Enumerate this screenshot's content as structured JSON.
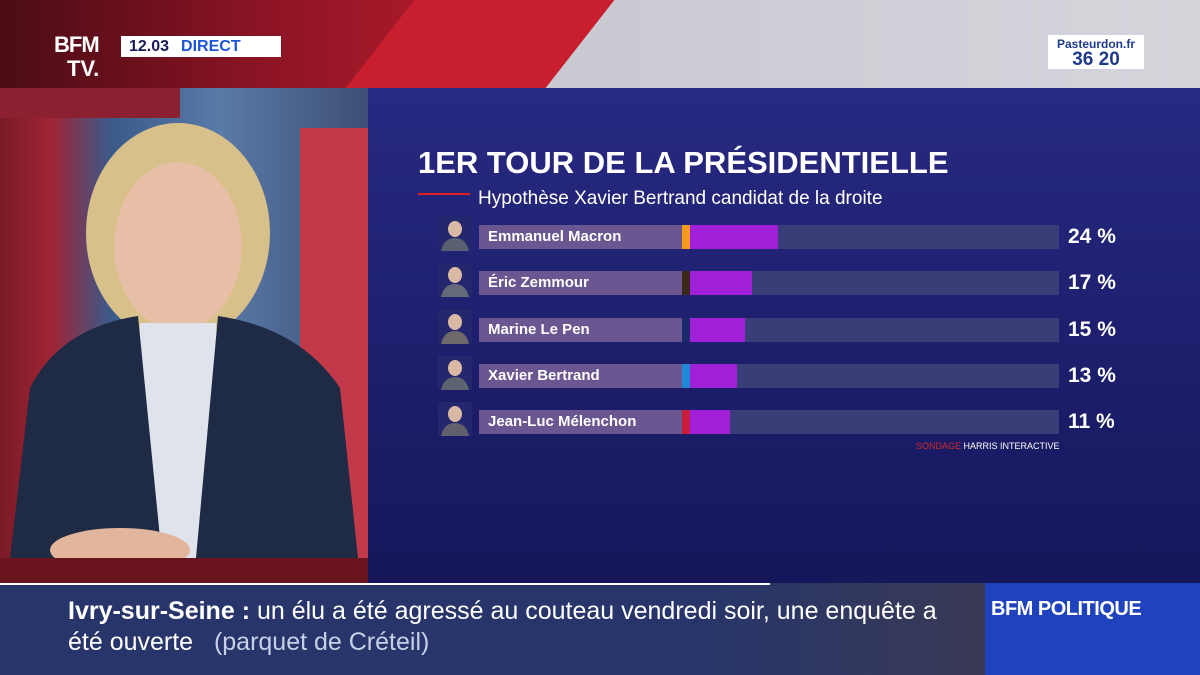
{
  "header": {
    "channel_line1": "BFM",
    "channel_line2": "TV.",
    "time": "12.03",
    "live_label": "DIRECT",
    "sponsor_line1": "Pasteurdon.fr",
    "sponsor_line2": "36 20"
  },
  "chart_data": {
    "type": "bar",
    "title": "1ER TOUR DE LA PRÉSIDENTIELLE",
    "subtitle": "Hypothèse Xavier Bertrand candidat de la droite",
    "categories": [
      "Emmanuel Macron",
      "Éric Zemmour",
      "Marine Le Pen",
      "Xavier Bertrand",
      "Jean-Luc Mélenchon"
    ],
    "values": [
      24,
      17,
      15,
      13,
      11
    ],
    "value_labels": [
      "24 %",
      "17 %",
      "15 %",
      "13 %",
      "11 %"
    ],
    "party_colors": [
      "#f59a1a",
      "#3a2a1a",
      "#1b2a6a",
      "#1e8ad6",
      "#c81e3a"
    ],
    "bar_color": "#a020d8",
    "unit": "%",
    "xlim": [
      0,
      100
    ],
    "source_prefix": "SONDAGE",
    "source": "HARRIS INTERACTIVE"
  },
  "ticker": {
    "place": "Ivry-sur-Seine",
    "separator": " : ",
    "text": "un élu a été agressé au couteau vendredi soir, une enquête a été ouverte",
    "source": "(parquet de Créteil)",
    "program": "BFM POLITIQUE"
  }
}
